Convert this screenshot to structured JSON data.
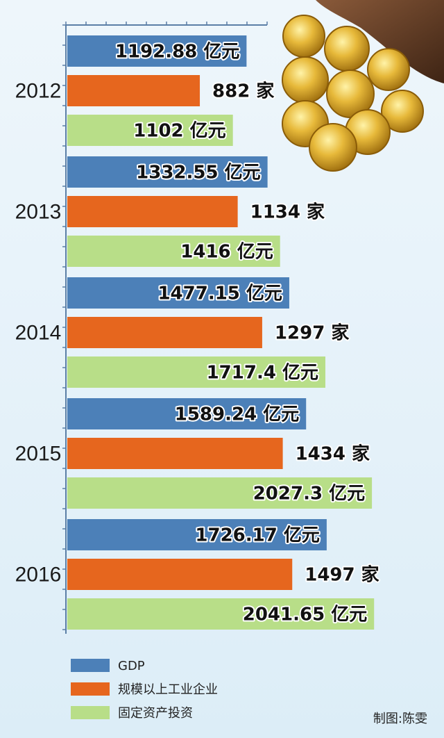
{
  "chart_data": {
    "type": "bar",
    "orientation": "horizontal",
    "categories": [
      "2012",
      "2013",
      "2014",
      "2015",
      "2016"
    ],
    "series": [
      {
        "name": "GDP",
        "color": "#4c80b8",
        "values": [
          1192.88,
          1332.55,
          1477.15,
          1589.24,
          1726.17
        ],
        "labels": [
          "1192.88 亿元",
          "1332.55 亿元",
          "1477.15 亿元",
          "1589.24 亿元",
          "1726.17 亿元"
        ]
      },
      {
        "name": "规模以上工业企业",
        "color": "#e6661e",
        "values": [
          882,
          1134,
          1297,
          1434,
          1497
        ],
        "labels": [
          "882 家",
          "1134 家",
          "1297 家",
          "1434 家",
          "1497 家"
        ]
      },
      {
        "name": "固定资产投资",
        "color": "#b8de88",
        "values": [
          1102,
          1416,
          1717.4,
          2027.3,
          2041.65
        ],
        "labels": [
          "1102 亿元",
          "1416 亿元",
          "1717.4 亿元",
          "2027.3 亿元",
          "2041.65 亿元"
        ]
      }
    ],
    "grid": false,
    "legend_position": "bottom-left"
  },
  "credit": "制图:陈雯",
  "decoration": "gold-coins-image"
}
